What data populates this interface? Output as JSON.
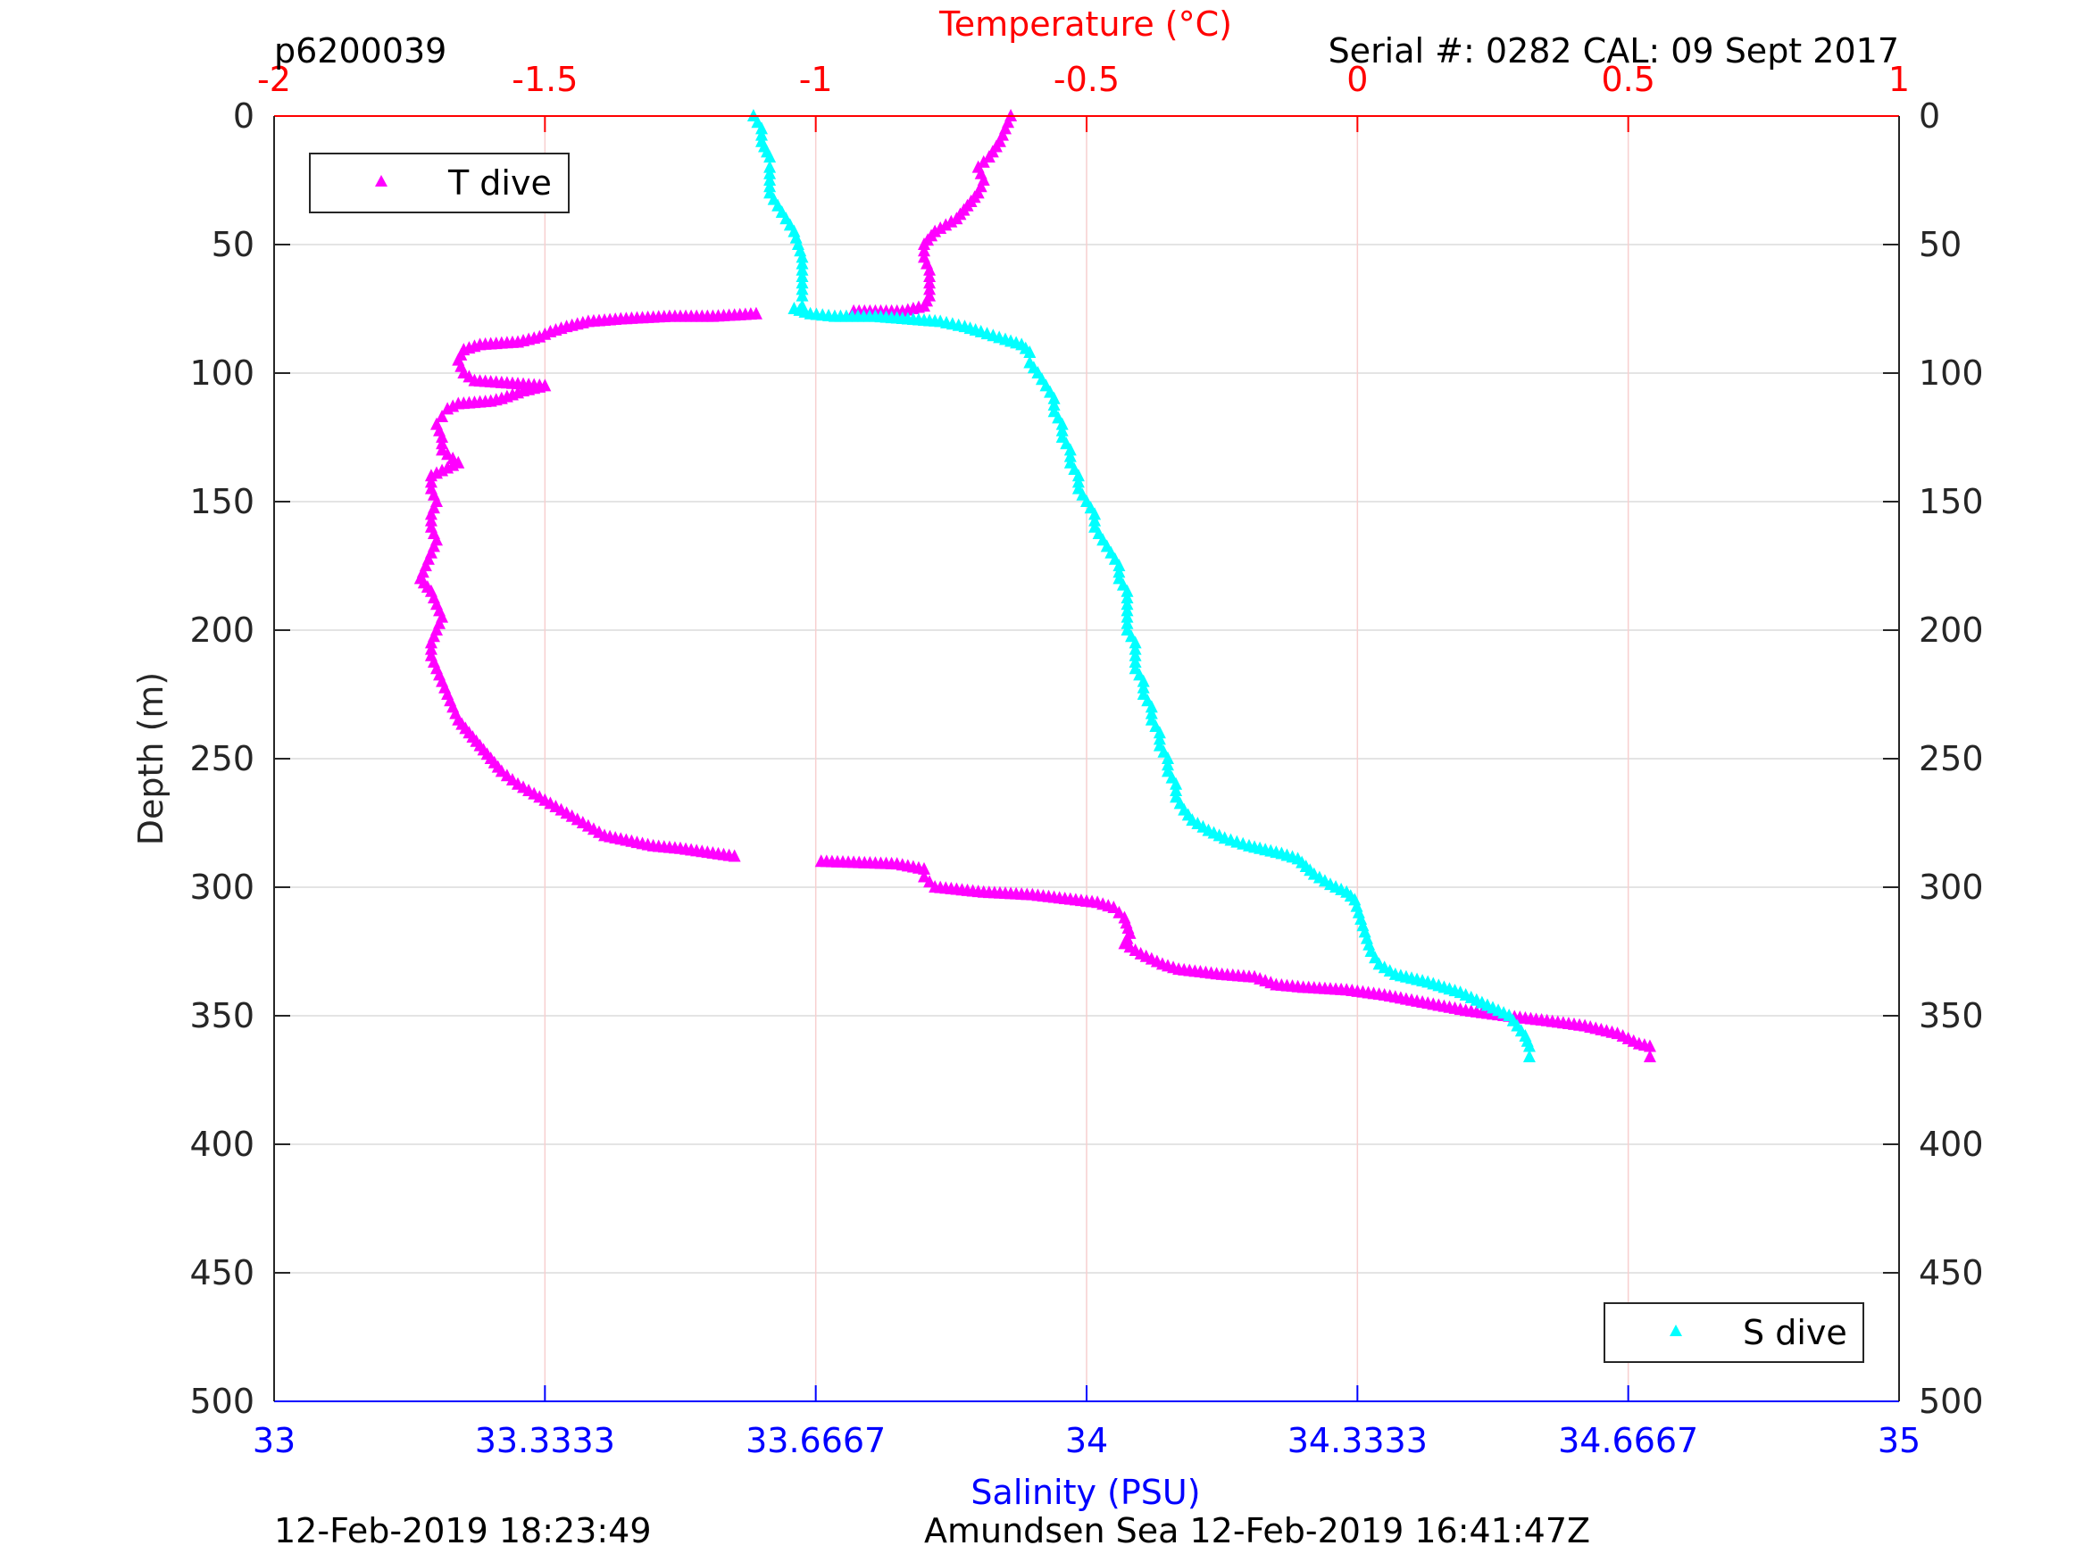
{
  "header": {
    "profile_id": "p6200039",
    "serial_cal": "Serial #: 0282  CAL: 09 Sept 2017"
  },
  "footer": {
    "timestamp": "12-Feb-2019 18:23:49",
    "location_time": "Amundsen Sea 12-Feb-2019 16:41:47Z"
  },
  "chart_data": {
    "type": "scatter",
    "title": "",
    "ylabel": "Depth (m)",
    "xlabel_top": "Temperature (°C)",
    "xlabel_bottom": "Salinity (PSU)",
    "ylim": [
      0,
      500
    ],
    "y_reversed": true,
    "x_top_lim": [
      -2,
      1
    ],
    "x_bottom_lim": [
      33,
      35
    ],
    "y_ticks": [
      "0",
      "50",
      "100",
      "150",
      "200",
      "250",
      "300",
      "350",
      "400",
      "450",
      "500"
    ],
    "x_top_ticks": [
      "-2",
      "-1.5",
      "-1",
      "-0.5",
      "0",
      "0.5",
      "1"
    ],
    "x_bottom_ticks": [
      "33",
      "33.3333",
      "33.6667",
      "34",
      "34.3333",
      "34.6667",
      "35"
    ],
    "grid": true,
    "colors": {
      "temperature": "#ff00ff",
      "salinity": "#00ffff",
      "top_axis": "#ff0000",
      "bottom_axis": "#0000ff"
    },
    "series": [
      {
        "name": "T dive",
        "axis": "top",
        "marker": "triangle",
        "points": [
          [
            -0.64,
            0
          ],
          [
            -0.65,
            5
          ],
          [
            -0.66,
            10
          ],
          [
            -0.68,
            16
          ],
          [
            -0.7,
            20
          ],
          [
            -0.69,
            25
          ],
          [
            -0.7,
            30
          ],
          [
            -0.72,
            35
          ],
          [
            -0.74,
            40
          ],
          [
            -0.78,
            45
          ],
          [
            -0.8,
            50
          ],
          [
            -0.8,
            55
          ],
          [
            -0.79,
            60
          ],
          [
            -0.79,
            65
          ],
          [
            -0.79,
            70
          ],
          [
            -0.8,
            74
          ],
          [
            -0.84,
            76
          ],
          [
            -0.93,
            76
          ],
          [
            -1.11,
            77
          ],
          [
            -1.19,
            78
          ],
          [
            -1.27,
            78
          ],
          [
            -1.36,
            79
          ],
          [
            -1.42,
            80
          ],
          [
            -1.46,
            82
          ],
          [
            -1.49,
            84
          ],
          [
            -1.51,
            86
          ],
          [
            -1.55,
            88
          ],
          [
            -1.62,
            89
          ],
          [
            -1.65,
            91
          ],
          [
            -1.66,
            95
          ],
          [
            -1.65,
            100
          ],
          [
            -1.63,
            103
          ],
          [
            -1.5,
            105
          ],
          [
            -1.54,
            107
          ],
          [
            -1.58,
            110
          ],
          [
            -1.6,
            111
          ],
          [
            -1.66,
            112
          ],
          [
            -1.68,
            114
          ],
          [
            -1.69,
            117
          ],
          [
            -1.7,
            120
          ],
          [
            -1.69,
            125
          ],
          [
            -1.69,
            130
          ],
          [
            -1.66,
            135
          ],
          [
            -1.71,
            140
          ],
          [
            -1.71,
            145
          ],
          [
            -1.7,
            150
          ],
          [
            -1.71,
            155
          ],
          [
            -1.71,
            160
          ],
          [
            -1.7,
            165
          ],
          [
            -1.71,
            170
          ],
          [
            -1.72,
            175
          ],
          [
            -1.73,
            180
          ],
          [
            -1.71,
            185
          ],
          [
            -1.7,
            190
          ],
          [
            -1.69,
            195
          ],
          [
            -1.7,
            200
          ],
          [
            -1.71,
            205
          ],
          [
            -1.71,
            210
          ],
          [
            -1.7,
            215
          ],
          [
            -1.69,
            220
          ],
          [
            -1.68,
            225
          ],
          [
            -1.67,
            230
          ],
          [
            -1.66,
            235
          ],
          [
            -1.64,
            240
          ],
          [
            -1.62,
            245
          ],
          [
            -1.6,
            250
          ],
          [
            -1.58,
            255
          ],
          [
            -1.55,
            260
          ],
          [
            -1.51,
            265
          ],
          [
            -1.47,
            270
          ],
          [
            -1.43,
            275
          ],
          [
            -1.39,
            280
          ],
          [
            -1.3,
            284
          ],
          [
            -1.25,
            285
          ],
          [
            -1.15,
            288
          ],
          [
            -0.99,
            290
          ],
          [
            -0.85,
            291
          ],
          [
            -0.8,
            293
          ],
          [
            -0.8,
            296
          ],
          [
            -0.78,
            300
          ],
          [
            -0.69,
            302
          ],
          [
            -0.6,
            303
          ],
          [
            -0.52,
            305
          ],
          [
            -0.48,
            306
          ],
          [
            -0.45,
            308
          ],
          [
            -0.43,
            312
          ],
          [
            -0.42,
            318
          ],
          [
            -0.43,
            322
          ],
          [
            -0.4,
            326
          ],
          [
            -0.36,
            330
          ],
          [
            -0.33,
            332
          ],
          [
            -0.25,
            334
          ],
          [
            -0.19,
            335
          ],
          [
            -0.15,
            338
          ],
          [
            -0.1,
            339
          ],
          [
            -0.02,
            340
          ],
          [
            0.05,
            342
          ],
          [
            0.1,
            344
          ],
          [
            0.2,
            348
          ],
          [
            0.27,
            350
          ],
          [
            0.35,
            352
          ],
          [
            0.42,
            354
          ],
          [
            0.48,
            357
          ],
          [
            0.52,
            361
          ],
          [
            0.54,
            362
          ],
          [
            0.54,
            366
          ]
        ]
      },
      {
        "name": "S dive",
        "axis": "bottom",
        "marker": "triangle",
        "points": [
          [
            33.59,
            0
          ],
          [
            33.6,
            5
          ],
          [
            33.6,
            10
          ],
          [
            33.61,
            16
          ],
          [
            33.61,
            20
          ],
          [
            33.61,
            25
          ],
          [
            33.61,
            30
          ],
          [
            33.62,
            35
          ],
          [
            33.63,
            40
          ],
          [
            33.64,
            45
          ],
          [
            33.645,
            50
          ],
          [
            33.65,
            55
          ],
          [
            33.65,
            60
          ],
          [
            33.65,
            65
          ],
          [
            33.65,
            70
          ],
          [
            33.65,
            74
          ],
          [
            33.64,
            75
          ],
          [
            33.66,
            77
          ],
          [
            33.69,
            78
          ],
          [
            33.74,
            78
          ],
          [
            33.78,
            79
          ],
          [
            33.82,
            80
          ],
          [
            33.85,
            82
          ],
          [
            33.87,
            84
          ],
          [
            33.9,
            87
          ],
          [
            33.92,
            89
          ],
          [
            33.93,
            92
          ],
          [
            33.93,
            96
          ],
          [
            33.94,
            100
          ],
          [
            33.95,
            105
          ],
          [
            33.96,
            110
          ],
          [
            33.96,
            115
          ],
          [
            33.97,
            120
          ],
          [
            33.97,
            125
          ],
          [
            33.98,
            130
          ],
          [
            33.98,
            135
          ],
          [
            33.99,
            140
          ],
          [
            33.99,
            145
          ],
          [
            34.0,
            150
          ],
          [
            34.01,
            155
          ],
          [
            34.01,
            160
          ],
          [
            34.02,
            165
          ],
          [
            34.03,
            170
          ],
          [
            34.04,
            175
          ],
          [
            34.04,
            180
          ],
          [
            34.05,
            185
          ],
          [
            34.05,
            190
          ],
          [
            34.05,
            195
          ],
          [
            34.05,
            200
          ],
          [
            34.06,
            205
          ],
          [
            34.06,
            210
          ],
          [
            34.06,
            215
          ],
          [
            34.07,
            220
          ],
          [
            34.07,
            225
          ],
          [
            34.08,
            230
          ],
          [
            34.08,
            235
          ],
          [
            34.09,
            240
          ],
          [
            34.09,
            245
          ],
          [
            34.1,
            250
          ],
          [
            34.1,
            255
          ],
          [
            34.11,
            260
          ],
          [
            34.11,
            265
          ],
          [
            34.12,
            270
          ],
          [
            34.13,
            274
          ],
          [
            34.15,
            278
          ],
          [
            34.17,
            281
          ],
          [
            34.2,
            284
          ],
          [
            34.24,
            287
          ],
          [
            34.26,
            289
          ],
          [
            34.27,
            292
          ],
          [
            34.28,
            295
          ],
          [
            34.3,
            299
          ],
          [
            34.32,
            302
          ],
          [
            34.33,
            305
          ],
          [
            34.335,
            310
          ],
          [
            34.34,
            315
          ],
          [
            34.345,
            320
          ],
          [
            34.35,
            325
          ],
          [
            34.36,
            330
          ],
          [
            34.38,
            334
          ],
          [
            34.42,
            337
          ],
          [
            34.46,
            341
          ],
          [
            34.48,
            344
          ],
          [
            34.5,
            347
          ],
          [
            34.52,
            350
          ],
          [
            34.53,
            354
          ],
          [
            34.54,
            358
          ],
          [
            34.545,
            362
          ],
          [
            34.545,
            366
          ]
        ]
      }
    ],
    "legends": [
      {
        "label": "T dive",
        "position": "top-left"
      },
      {
        "label": "S dive",
        "position": "bottom-right"
      }
    ]
  }
}
